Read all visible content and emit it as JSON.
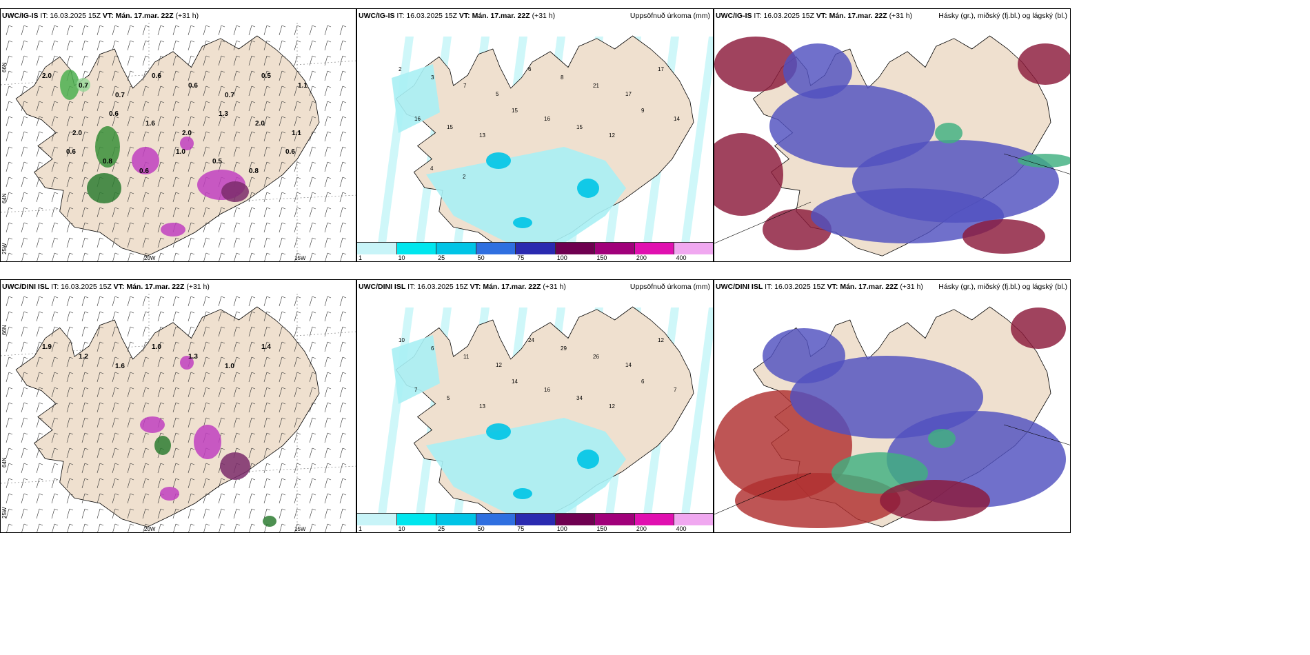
{
  "panels": [
    {
      "model_bold": "UWC/IG-IS",
      "it": "IT: 16.03.2025 15Z",
      "vt_bold": "VT: Mán. 17.mar. 22Z",
      "lead": "(+31 h)",
      "right": ""
    },
    {
      "model_bold": "UWC/IG-IS",
      "it": "IT: 16.03.2025 15Z",
      "vt_bold": "VT: Mán. 17.mar. 22Z",
      "lead": "(+31 h)",
      "right": "Uppsöfnuð úrkoma (mm)"
    },
    {
      "model_bold": "UWC/IG-IS",
      "it": "IT: 16.03.2025 15Z",
      "vt_bold": "VT: Mán. 17.mar. 22Z",
      "lead": "(+31 h)",
      "right": "Hásky (gr.), miðský (fj.bl.) og lágský (bl.)"
    },
    {
      "model_bold": "UWC/DINI ISL",
      "it": "IT: 16.03.2025 15Z",
      "vt_bold": "VT: Mán. 17.mar. 22Z",
      "lead": "(+31 h)",
      "right": ""
    },
    {
      "model_bold": "UWC/DINI ISL",
      "it": "IT: 16.03.2025 15Z",
      "vt_bold": "VT: Mán. 17.mar. 22Z",
      "lead": "(+31 h)",
      "right": "Uppsöfnuð úrkoma (mm)"
    },
    {
      "model_bold": "UWC/DINI ISL",
      "it": "IT: 16.03.2025 15Z",
      "vt_bold": "VT: Mán. 17.mar. 22Z",
      "lead": "(+31 h)",
      "right": "Hásky (gr.), miðský (fj.bl.) og lágský (bl.)"
    }
  ],
  "axes": {
    "lon_20w": "20W",
    "lon_15w": "15W",
    "lat_66n": "66N",
    "lat_64n": "64N",
    "lat_25w": "25W"
  },
  "colorbar": {
    "labels": [
      "1",
      "10",
      "25",
      "50",
      "75",
      "100",
      "150",
      "200",
      "400"
    ],
    "colors": [
      "#c8f4f8",
      "#00e6ee",
      "#00c4e6",
      "#2f6fe0",
      "#2a2ab0",
      "#6e0050",
      "#a0007a",
      "#e010b0",
      "#f0a8f0"
    ]
  },
  "wind_values_top": [
    "2.0",
    "0.7",
    "0.7",
    "0.6",
    "0.6",
    "0.7",
    "0.5",
    "1.1",
    "2.0",
    "0.6",
    "1.6",
    "2.0",
    "1.3",
    "2.0",
    "1.1",
    "0.6",
    "0.8",
    "0.6",
    "1.0",
    "0.5",
    "0.8",
    "0.6"
  ],
  "wind_values_bottom": [
    "1.9",
    "1.2",
    "1.6",
    "1.0",
    "1.3",
    "1.0",
    "1.4"
  ],
  "precip_values_top": [
    "2",
    "3",
    "7",
    "5",
    "6",
    "8",
    "21",
    "17",
    "17",
    "16",
    "15",
    "13",
    "15",
    "16",
    "15",
    "12",
    "9",
    "14",
    "4",
    "2"
  ],
  "precip_values_bottom": [
    "10",
    "6",
    "11",
    "12",
    "24",
    "29",
    "26",
    "14",
    "12",
    "7",
    "5",
    "13",
    "14",
    "16",
    "34",
    "12",
    "6",
    "7"
  ],
  "colors": {
    "land": "#efe0cf",
    "precip_light": "#a8f0f4",
    "wind_green": "#4caf50",
    "wind_magenta": "#c040c0",
    "cloud_high_red": "#8b1a3a",
    "cloud_mid_blue": "#5050c0",
    "cloud_low_green": "#40b080"
  }
}
